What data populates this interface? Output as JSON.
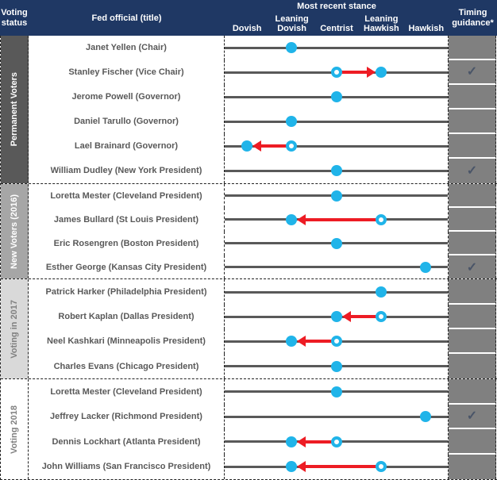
{
  "header": {
    "voting_status": "Voting status",
    "fed_official": "Fed official (title)",
    "stance_title": "Most recent stance",
    "stance_columns": [
      "Dovish",
      "Leaning Dovish",
      "Centrist",
      "Leaning Hawkish",
      "Hawkish"
    ],
    "timing_guidance": "Timing guidance*"
  },
  "groups": [
    {
      "label": "Permanent Voters",
      "bg": "#595959",
      "text": "#ffffff"
    },
    {
      "label": "New Voters (2016)",
      "bg": "#a6a6a6",
      "text": "#ffffff"
    },
    {
      "label": "Voting in 2017",
      "bg": "#d9d9d9",
      "text": "#808080"
    },
    {
      "label": "Voting 2018",
      "bg": "#ffffff",
      "text": "#808080"
    }
  ],
  "timing_check_glyph": "✓",
  "colors": {
    "header_bg": "#1f3864",
    "line": "#595959",
    "dot": "#20b4e9",
    "arrow": "#ed1c24",
    "timing_bg": "#808080",
    "check": "#4a5568",
    "name_text": "#595959"
  },
  "chart_data": {
    "type": "scatter",
    "title": "Most recent stance",
    "x_categories": [
      "Dovish",
      "Leaning Dovish",
      "Centrist",
      "Leaning Hawkish",
      "Hawkish"
    ],
    "rows": [
      {
        "group": 0,
        "official": "Janet Yellen (Chair)",
        "stance": "Leaning Dovish",
        "previous_stance": null,
        "timing_guidance": false
      },
      {
        "group": 0,
        "official": "Stanley Fischer (Vice Chair)",
        "stance": "Leaning Hawkish",
        "previous_stance": "Centrist",
        "timing_guidance": true
      },
      {
        "group": 0,
        "official": "Jerome Powell (Governor)",
        "stance": "Centrist",
        "previous_stance": null,
        "timing_guidance": false
      },
      {
        "group": 0,
        "official": "Daniel Tarullo (Governor)",
        "stance": "Leaning Dovish",
        "previous_stance": null,
        "timing_guidance": false
      },
      {
        "group": 0,
        "official": "Lael Brainard (Governor)",
        "stance": "Dovish",
        "previous_stance": "Leaning Dovish",
        "timing_guidance": false
      },
      {
        "group": 0,
        "official": "William Dudley (New York President)",
        "stance": "Centrist",
        "previous_stance": null,
        "timing_guidance": true
      },
      {
        "group": 1,
        "official": "Loretta Mester (Cleveland President)",
        "stance": "Centrist",
        "previous_stance": null,
        "timing_guidance": false
      },
      {
        "group": 1,
        "official": "James Bullard (St Louis President)",
        "stance": "Leaning Dovish",
        "previous_stance": "Leaning Hawkish",
        "timing_guidance": false
      },
      {
        "group": 1,
        "official": "Eric Rosengren (Boston President)",
        "stance": "Centrist",
        "previous_stance": null,
        "timing_guidance": false
      },
      {
        "group": 1,
        "official": "Esther George (Kansas City President)",
        "stance": "Hawkish",
        "previous_stance": null,
        "timing_guidance": true
      },
      {
        "group": 2,
        "official": "Patrick Harker (Philadelphia President)",
        "stance": "Leaning Hawkish",
        "previous_stance": null,
        "timing_guidance": false
      },
      {
        "group": 2,
        "official": "Robert Kaplan (Dallas President)",
        "stance": "Centrist",
        "previous_stance": "Leaning Hawkish",
        "timing_guidance": false
      },
      {
        "group": 2,
        "official": "Neel Kashkari (Minneapolis President)",
        "stance": "Leaning Dovish",
        "previous_stance": "Centrist",
        "timing_guidance": false
      },
      {
        "group": 2,
        "official": "Charles Evans (Chicago President)",
        "stance": "Centrist",
        "previous_stance": null,
        "timing_guidance": false
      },
      {
        "group": 3,
        "official": "Loretta Mester (Cleveland President)",
        "stance": "Centrist",
        "previous_stance": null,
        "timing_guidance": false
      },
      {
        "group": 3,
        "official": "Jeffrey Lacker (Richmond President)",
        "stance": "Hawkish",
        "previous_stance": null,
        "timing_guidance": true
      },
      {
        "group": 3,
        "official": "Dennis Lockhart (Atlanta President)",
        "stance": "Leaning Dovish",
        "previous_stance": "Centrist",
        "timing_guidance": false
      },
      {
        "group": 3,
        "official": "John Williams (San Francisco President)",
        "stance": "Leaning Dovish",
        "previous_stance": "Leaning Hawkish",
        "timing_guidance": false
      }
    ]
  }
}
